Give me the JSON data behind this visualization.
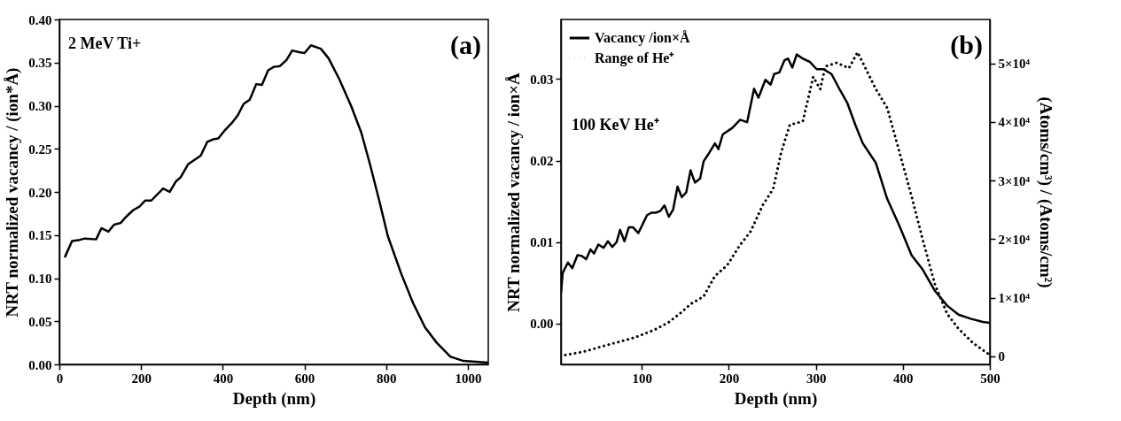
{
  "chart_data": [
    {
      "type": "line",
      "xlabel": "Depth (nm)",
      "ylabel": "NRT normalized vacancy / (ion*Å)",
      "annotations": [
        "2 MeV Ti+",
        "(a)"
      ],
      "xlim": [
        0,
        1050
      ],
      "xticks": [
        0,
        200,
        400,
        600,
        800,
        1000
      ],
      "ylim": [
        0,
        0.4
      ],
      "yticks": [
        {
          "value": 0,
          "label": "0.00"
        },
        0.05,
        {
          "value": 0.1,
          "label": "0.10"
        },
        0.15,
        {
          "value": 0.2,
          "label": "0.20"
        },
        0.25,
        {
          "value": 0.3,
          "label": "0.30"
        },
        0.35,
        {
          "value": 0.4,
          "label": "0.40"
        }
      ],
      "grid": false,
      "line_style": "solid",
      "marker": "none",
      "x": [
        14,
        31,
        47,
        62,
        90,
        103,
        120,
        134,
        150,
        163,
        181,
        196,
        210,
        225,
        254,
        270,
        285,
        297,
        315,
        346,
        362,
        377,
        389,
        406,
        424,
        437,
        451,
        466,
        482,
        496,
        511,
        525,
        540,
        556,
        570,
        587,
        600,
        616,
        640,
        659,
        685,
        714,
        739,
        761,
        783,
        804,
        837,
        866,
        895,
        924,
        957,
        989,
        1050
      ],
      "series": [
        {
          "color": "#000000",
          "values": [
            0.125,
            0.143,
            0.144,
            0.146,
            0.145,
            0.158,
            0.154,
            0.162,
            0.164,
            0.171,
            0.179,
            0.183,
            0.19,
            0.19,
            0.204,
            0.2,
            0.212,
            0.217,
            0.232,
            0.242,
            0.258,
            0.261,
            0.262,
            0.272,
            0.281,
            0.289,
            0.302,
            0.307,
            0.325,
            0.324,
            0.341,
            0.345,
            0.346,
            0.353,
            0.364,
            0.362,
            0.361,
            0.37,
            0.366,
            0.355,
            0.331,
            0.3,
            0.269,
            0.231,
            0.19,
            0.149,
            0.105,
            0.071,
            0.043,
            0.025,
            0.009,
            0.004,
            0.002
          ]
        }
      ]
    },
    {
      "type": "line",
      "xlabel": "Depth (nm)",
      "ylabel": "NRT normalized vacancy / ion×Å",
      "y2label": "(Atoms/cm³) / (Atoms/cm²)",
      "annotations": [
        "100 KeV He⁺",
        "(b)"
      ],
      "xlim": [
        7,
        500
      ],
      "xticks": [
        100,
        200,
        300,
        400,
        500
      ],
      "ylim": [
        -0.005,
        0.0373
      ],
      "yticks": [
        {
          "value": 0,
          "label": "0.00"
        },
        0.01,
        0.02,
        0.03
      ],
      "y2lim": [
        -1400,
        57500
      ],
      "y2ticks": [
        0,
        {
          "value": 10000,
          "label": "1×10⁴"
        },
        {
          "value": 20000,
          "label": "2×10⁴"
        },
        {
          "value": 30000,
          "label": "3×10⁴"
        },
        {
          "value": 40000,
          "label": "4×10⁴"
        },
        {
          "value": 50000,
          "label": "5×10⁴"
        }
      ],
      "grid": false,
      "legend": "top left",
      "marker": "none",
      "series": [
        {
          "name": "Vacancy /ion×Å",
          "color": "#000000",
          "line_style": "solid",
          "x": [
            7,
            9,
            15,
            20,
            26,
            31,
            36,
            41,
            45,
            50,
            56,
            61,
            66,
            71,
            75,
            80,
            85,
            90,
            96,
            101,
            106,
            111,
            116,
            121,
            126,
            131,
            136,
            141,
            146,
            151,
            156,
            161,
            167,
            171,
            176,
            184,
            188,
            193,
            204,
            213,
            221,
            229,
            234,
            242,
            248,
            252,
            258,
            264,
            268,
            273,
            278,
            285,
            293,
            301,
            309,
            318,
            328,
            336,
            346,
            354,
            369,
            382,
            396,
            410,
            423,
            437,
            451,
            464,
            478,
            492,
            500
          ],
          "values": [
            0.0037,
            0.0062,
            0.0075,
            0.0068,
            0.0084,
            0.0083,
            0.0079,
            0.0091,
            0.0086,
            0.0097,
            0.0093,
            0.0101,
            0.0094,
            0.01,
            0.0115,
            0.0101,
            0.0118,
            0.0118,
            0.0111,
            0.0122,
            0.0133,
            0.0136,
            0.0136,
            0.0138,
            0.0145,
            0.0131,
            0.014,
            0.0168,
            0.0155,
            0.0161,
            0.0188,
            0.0173,
            0.0178,
            0.0199,
            0.0207,
            0.0221,
            0.0214,
            0.0232,
            0.024,
            0.025,
            0.0247,
            0.0288,
            0.0277,
            0.0299,
            0.0293,
            0.0306,
            0.0308,
            0.0323,
            0.0325,
            0.0314,
            0.033,
            0.0325,
            0.0321,
            0.0312,
            0.0312,
            0.0306,
            0.0286,
            0.0271,
            0.0242,
            0.0221,
            0.0197,
            0.0153,
            0.012,
            0.0084,
            0.0066,
            0.004,
            0.0022,
            0.0011,
            0.0006,
            0.0002,
            0.0001
          ]
        },
        {
          "name": "Range of He⁺",
          "color": "#000000",
          "line_style": "dotted",
          "axis": "y2",
          "x": [
            12,
            34,
            55,
            75,
            92,
            113,
            130,
            143,
            157,
            171,
            184,
            198,
            212,
            225,
            239,
            251,
            260,
            270,
            285,
            297,
            305,
            311,
            324,
            338,
            348,
            361,
            369,
            382,
            396,
            410,
            423,
            437,
            451,
            464,
            481,
            500
          ],
          "values": [
            200,
            800,
            1700,
            2500,
            3200,
            4400,
            5700,
            7200,
            9000,
            10200,
            13700,
            15500,
            18800,
            21300,
            25800,
            28600,
            34700,
            39500,
            40100,
            47700,
            45600,
            49500,
            50100,
            49200,
            51900,
            48000,
            45600,
            42400,
            34900,
            27300,
            19800,
            12200,
            7200,
            4700,
            2200,
            200
          ]
        }
      ]
    }
  ]
}
